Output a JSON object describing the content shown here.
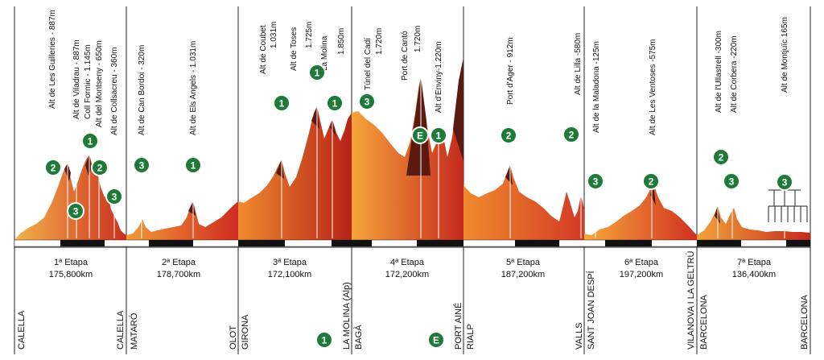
{
  "stages": [
    {
      "title": "1ª Etapa",
      "distance": "175,800km",
      "start": "CALELLA",
      "finish": "CALELLA",
      "climbs": [
        {
          "label": "Alt de Les Guilleries - 887m",
          "cat": "2"
        },
        {
          "label": "Alt de Viladrau - 887m",
          "cat": "3"
        },
        {
          "label": "Coll Formic - 1.145m",
          "cat": "1"
        },
        {
          "label": "Alt del Montseny - 650m",
          "cat": "2"
        },
        {
          "label": "Alt de Collsacreu - 360m",
          "cat": "3"
        }
      ]
    },
    {
      "title": "2ª Etapa",
      "distance": "178,700km",
      "start": "MATARÓ",
      "finish": "OLOT",
      "climbs": [
        {
          "label": "Alt de Can Bordoi - 320m",
          "cat": "3"
        },
        {
          "label": "Alt de Els Angels - 1.031m",
          "cat": "1"
        }
      ]
    },
    {
      "title": "3ª Etapa",
      "distance": "172,100km",
      "start": "GIRONA",
      "finish": "LA MOLINA (Alp)",
      "finish_badge": "1",
      "climbs": [
        {
          "label": "Alt de Coubet",
          "elev": "1.031m",
          "cat": "1"
        },
        {
          "label": "Alt de Toses",
          "elev": "1.725m",
          "cat": ""
        },
        {
          "label": "La Molina",
          "elev": "1.850m",
          "cat": "1"
        }
      ]
    },
    {
      "title": "4ª Etapa",
      "distance": "172,200km",
      "start": "BAGÀ",
      "finish": "PORT AINÉ",
      "finish_badge": "E",
      "climbs": [
        {
          "label": "Túnel del Cadí",
          "elev": "1.720m",
          "cat": "3"
        },
        {
          "label": "Port de Cantó",
          "elev": "1.720m",
          "cat": "E"
        },
        {
          "label": "Alt d'Enviny-1.220m",
          "cat": "1"
        }
      ]
    },
    {
      "title": "5ª Etapa",
      "distance": "187,200km",
      "start": "RIALP",
      "finish": "VALLS",
      "climbs": [
        {
          "label": "Port d'Ager - 912m",
          "cat": "2"
        },
        {
          "label": "Alt de Lilla -580m",
          "cat": "2"
        }
      ]
    },
    {
      "title": "6ª Etapa",
      "distance": "197,200km",
      "start": "SANT JOAN DESPÍ",
      "finish": "VILANOVA I LA GELTRÚ",
      "climbs": [
        {
          "label": "Alt de la Maladona -125m",
          "cat": "3"
        },
        {
          "label": "Alt de Les Ventoses -575m",
          "cat": "2"
        }
      ]
    },
    {
      "title": "7ª Etapa",
      "distance": "136,400km",
      "start": "BARCELONA",
      "finish": "BARCELONA",
      "climbs": [
        {
          "label": "Alt de l'Ullastrell -300m",
          "cat": "2"
        },
        {
          "label": "Alt de Corbera -220m",
          "cat": "3"
        },
        {
          "label": "Alt de Montjuïc 165m",
          "cat": "3"
        }
      ]
    }
  ],
  "colors": {
    "badge_green": "#1f7a3a",
    "profile_light": "#f3a23a",
    "profile_dark": "#c8281e",
    "peak_dark": "#5a1a10"
  }
}
